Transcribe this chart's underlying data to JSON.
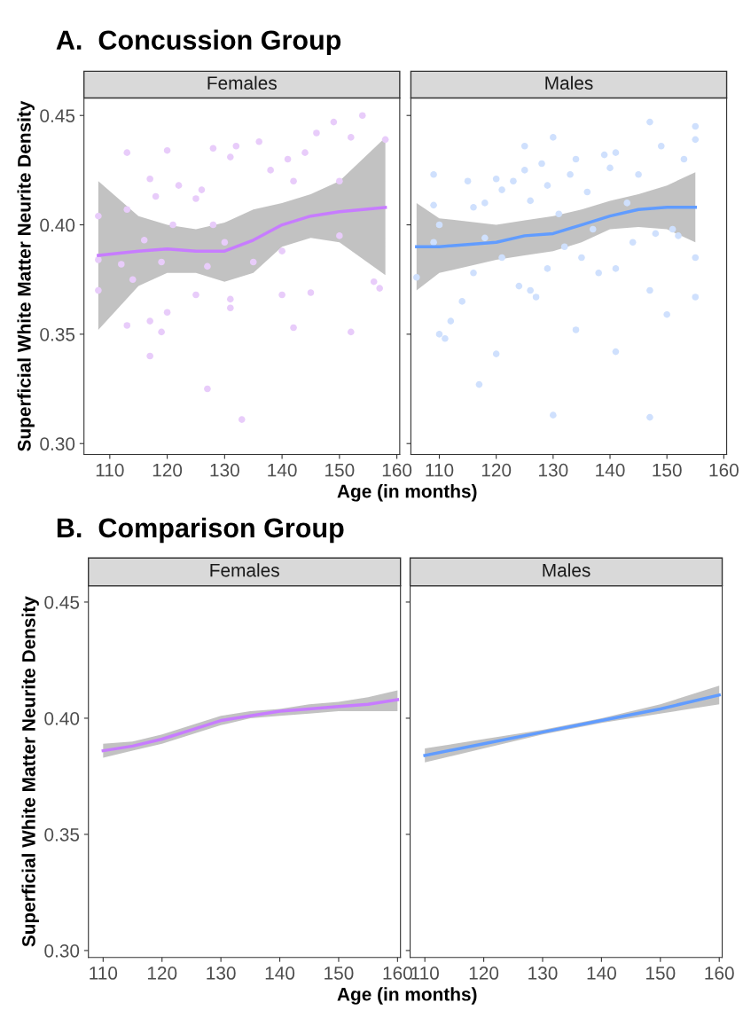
{
  "chart_data": [
    {
      "type": "line",
      "title": "A.  Concussion Group",
      "subtitle": "Females",
      "xlabel": "Age (in months)",
      "ylabel": "Superficial White Matter Neurite Density",
      "xlim": [
        105.5,
        160.5
      ],
      "ylim": [
        0.295,
        0.458
      ],
      "xticks": [
        110,
        120,
        130,
        140,
        150,
        160
      ],
      "yticks": [
        {
          "value": 0.3,
          "label": "0.30"
        },
        {
          "value": 0.35,
          "label": "0.35"
        },
        {
          "value": 0.4,
          "label": "0.40"
        },
        {
          "value": 0.45,
          "label": "0.45"
        }
      ],
      "grid": false,
      "legend": false,
      "series": [
        {
          "type": "scatter",
          "color": "#e8ccfa",
          "x": [
            108,
            113,
            120,
            128,
            132,
            136,
            146,
            149,
            154,
            158,
            152,
            144,
            141,
            131,
            117,
            122,
            126,
            118,
            125,
            138,
            142,
            150,
            113,
            121,
            128,
            116,
            130,
            108,
            112,
            119,
            127,
            135,
            140,
            150,
            108,
            114,
            125,
            131,
            140,
            145,
            156,
            113,
            117,
            119,
            131,
            142,
            152,
            117,
            127,
            133,
            120,
            157
          ],
          "values": [
            0.404,
            0.433,
            0.434,
            0.435,
            0.436,
            0.438,
            0.442,
            0.447,
            0.45,
            0.439,
            0.44,
            0.433,
            0.43,
            0.431,
            0.421,
            0.418,
            0.416,
            0.413,
            0.412,
            0.425,
            0.42,
            0.42,
            0.407,
            0.4,
            0.4,
            0.393,
            0.392,
            0.384,
            0.382,
            0.383,
            0.381,
            0.383,
            0.388,
            0.395,
            0.37,
            0.375,
            0.368,
            0.366,
            0.368,
            0.369,
            0.374,
            0.354,
            0.356,
            0.351,
            0.362,
            0.353,
            0.351,
            0.34,
            0.325,
            0.311,
            0.36,
            0.371
          ]
        },
        {
          "color": "#c77cff",
          "x": [
            108,
            115,
            120,
            125,
            130,
            135,
            140,
            145,
            150,
            158
          ],
          "values": [
            0.386,
            0.388,
            0.389,
            0.388,
            0.388,
            0.393,
            0.4,
            0.404,
            0.406,
            0.408
          ],
          "lower": [
            0.352,
            0.372,
            0.378,
            0.378,
            0.374,
            0.378,
            0.39,
            0.394,
            0.392,
            0.377
          ],
          "upper": [
            0.42,
            0.404,
            0.4,
            0.398,
            0.401,
            0.407,
            0.41,
            0.414,
            0.42,
            0.44
          ]
        }
      ]
    },
    {
      "type": "line",
      "subtitle": "Males",
      "xlim": [
        105,
        160.5
      ],
      "ylim": [
        0.295,
        0.458
      ],
      "xticks": [
        110,
        120,
        130,
        140,
        150,
        160
      ],
      "tick_labels": "x",
      "grid": false,
      "legend": false,
      "series": [
        {
          "type": "scatter",
          "color": "#cfe0fd",
          "x": [
            106,
            109,
            109,
            110,
            111,
            115,
            116,
            118,
            120,
            121,
            123,
            125,
            125,
            126,
            128,
            129,
            130,
            131,
            133,
            134,
            136,
            137,
            139,
            140,
            141,
            143,
            145,
            147,
            147,
            149,
            151,
            153,
            155,
            155,
            155,
            109,
            112,
            116,
            118,
            121,
            124,
            126,
            129,
            132,
            135,
            138,
            141,
            144,
            148,
            152,
            155,
            110,
            114,
            117,
            120,
            127,
            130,
            134,
            141,
            147,
            150
          ],
          "values": [
            0.376,
            0.423,
            0.409,
            0.4,
            0.348,
            0.42,
            0.408,
            0.41,
            0.421,
            0.416,
            0.42,
            0.436,
            0.425,
            0.411,
            0.428,
            0.418,
            0.44,
            0.405,
            0.423,
            0.43,
            0.415,
            0.398,
            0.432,
            0.426,
            0.433,
            0.41,
            0.423,
            0.447,
            0.312,
            0.436,
            0.398,
            0.43,
            0.445,
            0.439,
            0.385,
            0.392,
            0.356,
            0.378,
            0.394,
            0.385,
            0.372,
            0.37,
            0.38,
            0.39,
            0.385,
            0.378,
            0.38,
            0.392,
            0.396,
            0.395,
            0.367,
            0.35,
            0.365,
            0.327,
            0.341,
            0.367,
            0.313,
            0.352,
            0.342,
            0.37,
            0.359
          ]
        },
        {
          "color": "#619cff",
          "x": [
            106,
            110,
            120,
            125,
            130,
            135,
            140,
            145,
            150,
            155
          ],
          "values": [
            0.39,
            0.39,
            0.392,
            0.395,
            0.396,
            0.4,
            0.404,
            0.407,
            0.408,
            0.408
          ],
          "lower": [
            0.37,
            0.378,
            0.384,
            0.386,
            0.388,
            0.392,
            0.398,
            0.399,
            0.398,
            0.392
          ],
          "upper": [
            0.41,
            0.403,
            0.4,
            0.402,
            0.404,
            0.407,
            0.411,
            0.414,
            0.418,
            0.424
          ]
        }
      ]
    },
    {
      "type": "line",
      "title": "B.  Comparison Group",
      "subtitle": "Females",
      "xlabel": "Age (in months)",
      "ylabel": "Superficial White Matter Neurite Density",
      "xlim": [
        107.5,
        160.5
      ],
      "ylim": [
        0.297,
        0.457
      ],
      "xticks": [
        110,
        120,
        130,
        140,
        150,
        160
      ],
      "yticks": [
        {
          "value": 0.3,
          "label": "0.30"
        },
        {
          "value": 0.35,
          "label": "0.35"
        },
        {
          "value": 0.4,
          "label": "0.40"
        },
        {
          "value": 0.45,
          "label": "0.45"
        }
      ],
      "grid": false,
      "legend": false,
      "series": [
        {
          "color": "#c77cff",
          "x": [
            110,
            115,
            120,
            125,
            130,
            135,
            140,
            145,
            150,
            155,
            160
          ],
          "values": [
            0.386,
            0.388,
            0.391,
            0.395,
            0.399,
            0.401,
            0.403,
            0.404,
            0.405,
            0.406,
            0.408
          ],
          "lower": [
            0.383,
            0.386,
            0.389,
            0.393,
            0.397,
            0.4,
            0.401,
            0.402,
            0.403,
            0.403,
            0.403
          ],
          "upper": [
            0.389,
            0.39,
            0.393,
            0.397,
            0.401,
            0.403,
            0.404,
            0.406,
            0.407,
            0.409,
            0.412
          ]
        }
      ]
    },
    {
      "type": "line",
      "subtitle": "Males",
      "xlim": [
        107.5,
        160.5
      ],
      "ylim": [
        0.297,
        0.457
      ],
      "xticks": [
        110,
        120,
        130,
        140,
        150,
        160
      ],
      "tick_labels": "x",
      "grid": false,
      "legend": false,
      "series": [
        {
          "color": "#619cff",
          "x": [
            110,
            120,
            130,
            140,
            150,
            160
          ],
          "values": [
            0.384,
            0.389,
            0.394,
            0.399,
            0.404,
            0.41
          ],
          "lower": [
            0.381,
            0.387,
            0.393,
            0.398,
            0.402,
            0.406
          ],
          "upper": [
            0.387,
            0.391,
            0.395,
            0.4,
            0.406,
            0.414
          ]
        }
      ]
    }
  ]
}
